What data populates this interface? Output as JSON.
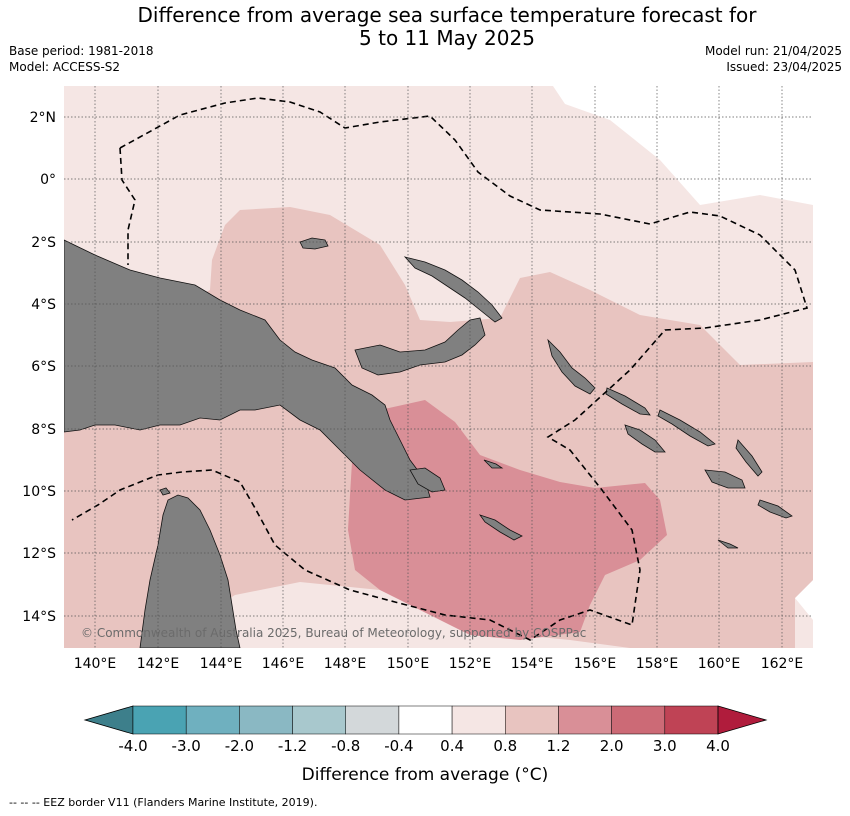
{
  "header": {
    "title_line1": "Difference from average sea surface temperature forecast for",
    "title_line2": "5 to 11 May 2025",
    "base_period": "Base period: 1981-2018",
    "model": "Model: ACCESS-S2",
    "model_run": "Model run: 21/04/2025",
    "issued": "Issued: 23/04/2025"
  },
  "map": {
    "lat_labels": [
      "2°N",
      "0°",
      "2°S",
      "4°S",
      "6°S",
      "8°S",
      "10°S",
      "12°S",
      "14°S"
    ],
    "lon_labels": [
      "140°E",
      "142°E",
      "144°E",
      "146°E",
      "148°E",
      "150°E",
      "152°E",
      "154°E",
      "156°E",
      "158°E",
      "160°E",
      "162°E"
    ],
    "copyright": "© Commonwealth of Australia 2025, Bureau of Meteorology, supported by COSPPac",
    "land_color": "#808080",
    "grid": "dotted"
  },
  "colorbar": {
    "ticks": [
      "-4.0",
      "-3.0",
      "-2.0",
      "-1.2",
      "-0.8",
      "-0.4",
      "0.4",
      "0.8",
      "1.2",
      "2.0",
      "3.0",
      "4.0"
    ],
    "colors": [
      "#3d7f8b",
      "#4aa3b3",
      "#6fb0bf",
      "#8ab8c3",
      "#a8c8cd",
      "#d3d8da",
      "#ffffff",
      "#f5e6e4",
      "#e8c4c0",
      "#d98f97",
      "#cc6a76",
      "#bf4355",
      "#b01c3c"
    ],
    "label": "Difference from average (°C)"
  },
  "footnote": "--  --  -- EEZ border V11 (Flanders Marine Institute, 2019)."
}
